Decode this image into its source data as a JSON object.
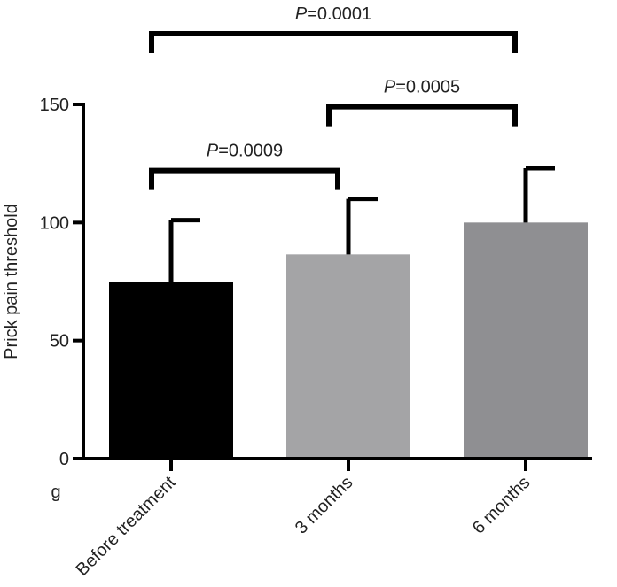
{
  "chart_data": {
    "type": "bar",
    "title": "",
    "xlabel": "",
    "ylabel": "Prick pain threshold",
    "unit_label": "g",
    "ylim": [
      0,
      150
    ],
    "yticks": [
      0,
      50,
      100,
      150
    ],
    "grid": false,
    "categories": [
      "Before treatment",
      "3 months",
      "6 months"
    ],
    "values": [
      75,
      86.5,
      100
    ],
    "errors": [
      26,
      23.5,
      23
    ],
    "bar_colors": [
      "#000000",
      "#a4a4a6",
      "#8f8f92"
    ],
    "comparisons": [
      {
        "from": 0,
        "to": 1,
        "y": 122,
        "p_prefix": "P",
        "p_value": "=0.0009"
      },
      {
        "from": 1,
        "to": 2,
        "y": 149,
        "p_prefix": "P",
        "p_value": "=0.0005"
      },
      {
        "from": 0,
        "to": 2,
        "y": 180,
        "p_prefix": "P",
        "p_value": "=0.0001"
      }
    ]
  }
}
